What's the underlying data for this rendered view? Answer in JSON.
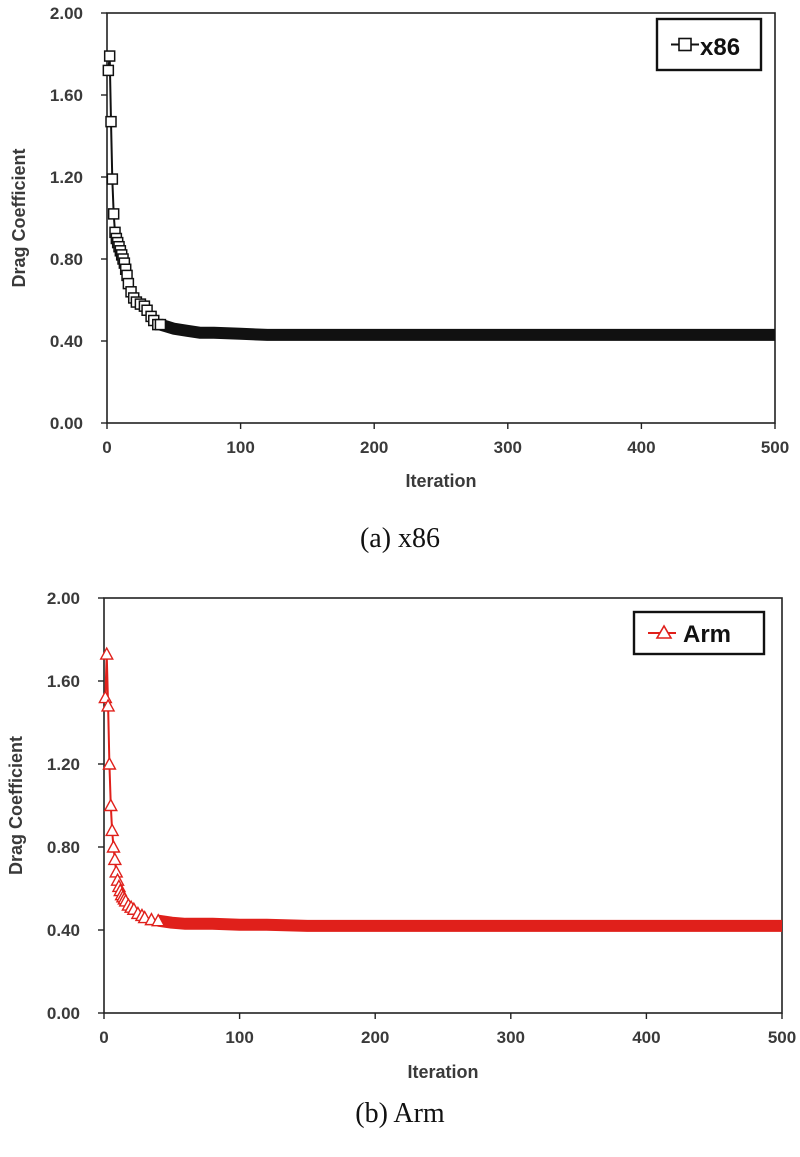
{
  "chart_data": [
    {
      "type": "line",
      "caption": "(a)  x86",
      "xlabel": "Iteration",
      "ylabel": "Drag Coefficient",
      "xlim": [
        0,
        500
      ],
      "ylim": [
        0,
        2
      ],
      "xticks": [
        "0",
        "100",
        "200",
        "300",
        "400",
        "500"
      ],
      "yticks": [
        "0.00",
        "0.40",
        "0.80",
        "1.20",
        "1.60",
        "2.00"
      ],
      "legend_position": "top-right",
      "grid": false,
      "series": [
        {
          "name": "x86",
          "marker": "square",
          "color": "#111111",
          "x": [
            1,
            2,
            3,
            4,
            5,
            6,
            7,
            8,
            9,
            10,
            11,
            12,
            13,
            14,
            15,
            16,
            18,
            20,
            22,
            25,
            28,
            30,
            33,
            35,
            38,
            40,
            45,
            50,
            60,
            70,
            80,
            100,
            120,
            150,
            200,
            250,
            300,
            350,
            400,
            450,
            500
          ],
          "y": [
            1.72,
            1.79,
            1.47,
            1.19,
            1.02,
            0.93,
            0.9,
            0.88,
            0.86,
            0.84,
            0.82,
            0.8,
            0.78,
            0.75,
            0.72,
            0.68,
            0.64,
            0.61,
            0.59,
            0.58,
            0.57,
            0.55,
            0.52,
            0.5,
            0.48,
            0.48,
            0.47,
            0.46,
            0.45,
            0.44,
            0.44,
            0.435,
            0.43,
            0.43,
            0.43,
            0.43,
            0.43,
            0.43,
            0.43,
            0.43,
            0.43
          ]
        }
      ]
    },
    {
      "type": "line",
      "caption": "(b)  Arm",
      "xlabel": "Iteration",
      "ylabel": "Drag Coefficient",
      "xlim": [
        0,
        500
      ],
      "ylim": [
        0,
        2
      ],
      "xticks": [
        "0",
        "100",
        "200",
        "300",
        "400",
        "500"
      ],
      "yticks": [
        "0.00",
        "0.40",
        "0.80",
        "1.20",
        "1.60",
        "2.00"
      ],
      "legend_position": "top-right",
      "grid": false,
      "series": [
        {
          "name": "Arm",
          "marker": "triangle",
          "color": "#e0201b",
          "x": [
            1,
            2,
            3,
            4,
            5,
            6,
            7,
            8,
            9,
            10,
            11,
            12,
            13,
            14,
            15,
            16,
            18,
            20,
            22,
            25,
            28,
            30,
            35,
            40,
            45,
            50,
            60,
            70,
            80,
            100,
            120,
            150,
            200,
            250,
            300,
            350,
            400,
            450,
            500
          ],
          "y": [
            1.52,
            1.73,
            1.48,
            1.2,
            1.0,
            0.88,
            0.8,
            0.74,
            0.68,
            0.64,
            0.61,
            0.59,
            0.57,
            0.56,
            0.55,
            0.54,
            0.52,
            0.51,
            0.5,
            0.48,
            0.47,
            0.46,
            0.45,
            0.445,
            0.44,
            0.435,
            0.43,
            0.43,
            0.43,
            0.425,
            0.425,
            0.42,
            0.42,
            0.42,
            0.42,
            0.42,
            0.42,
            0.42,
            0.42
          ]
        }
      ]
    }
  ]
}
